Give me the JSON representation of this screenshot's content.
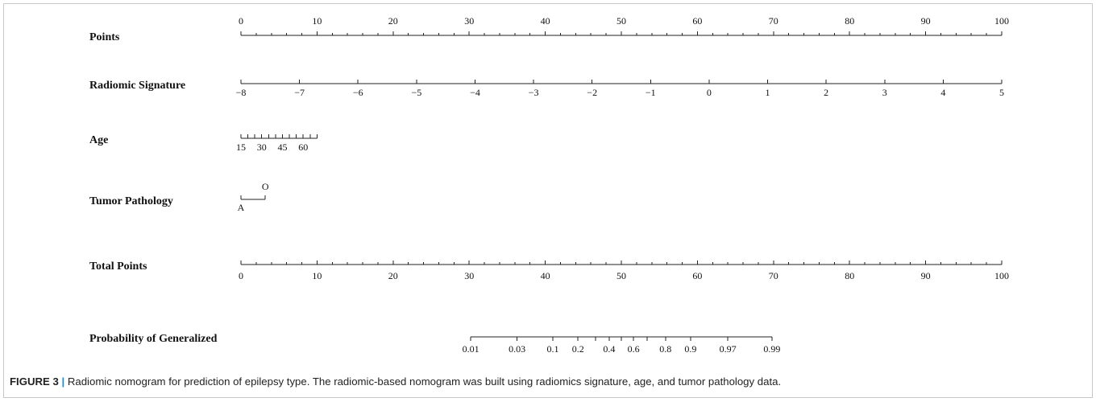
{
  "chart_data": {
    "type": "nomogram",
    "rows": [
      {
        "label": "Points",
        "kind": "points",
        "ticks_above": true,
        "range": [
          0,
          100
        ],
        "major": [
          0,
          10,
          20,
          30,
          40,
          50,
          60,
          70,
          80,
          90,
          100
        ],
        "major_labels": [
          "0",
          "10",
          "20",
          "30",
          "40",
          "50",
          "60",
          "70",
          "80",
          "90",
          "100"
        ],
        "minor_step": 2
      },
      {
        "label": "Radiomic Signature",
        "kind": "continuous",
        "ticks_above": false,
        "values": [
          -8,
          -7,
          -6,
          -5,
          -4,
          -3,
          -2,
          -1,
          0,
          1,
          2,
          3,
          4,
          5
        ],
        "value_labels": [
          "−8",
          "−7",
          "−6",
          "−5",
          "−4",
          "−3",
          "−2",
          "−1",
          "0",
          "1",
          "2",
          "3",
          "4",
          "5"
        ],
        "point_range": [
          0,
          100
        ]
      },
      {
        "label": "Age",
        "kind": "continuous",
        "ticks_above": false,
        "values": [
          15,
          20,
          25,
          30,
          35,
          40,
          45,
          50,
          55,
          60,
          65,
          70
        ],
        "value_labels": [
          "15",
          "",
          "",
          "30",
          "",
          "",
          "45",
          "",
          "",
          "60",
          "",
          ""
        ],
        "point_range": [
          0,
          10
        ]
      },
      {
        "label": "Tumor Pathology",
        "kind": "categorical",
        "levels": [
          {
            "label": "A",
            "points": 0,
            "label_position": "below"
          },
          {
            "label": "O",
            "points": 3.2,
            "label_position": "above"
          }
        ]
      },
      {
        "label": "Total Points",
        "kind": "points",
        "ticks_above": false,
        "range": [
          0,
          100
        ],
        "major": [
          0,
          10,
          20,
          30,
          40,
          50,
          60,
          70,
          80,
          90,
          100
        ],
        "major_labels": [
          "0",
          "10",
          "20",
          "30",
          "40",
          "50",
          "60",
          "70",
          "80",
          "90",
          "100"
        ],
        "minor_step": 2
      },
      {
        "label": "Probability of Generalized",
        "kind": "probability",
        "ticks_above": true,
        "probabilities": [
          0.01,
          0.03,
          0.1,
          0.2,
          0.3,
          0.4,
          0.5,
          0.6,
          0.7,
          0.8,
          0.9,
          0.97,
          0.99
        ],
        "prob_labels": [
          "0.01",
          "0.03",
          "0.1",
          "0.2",
          "",
          "0.4",
          "",
          "0.6",
          "",
          "0.8",
          "0.9",
          "0.97",
          "0.99"
        ],
        "total_points": [
          30.2,
          36.3,
          41.0,
          44.3,
          46.6,
          48.4,
          50.0,
          51.6,
          53.4,
          55.8,
          59.1,
          64.0,
          69.8
        ]
      }
    ]
  },
  "caption": {
    "label": "FIGURE 3",
    "separator": "|",
    "text": " Radiomic nomogram for prediction of epilepsy type. The radiomic-based nomogram was built using radiomics signature, age, and tumor pathology data."
  }
}
